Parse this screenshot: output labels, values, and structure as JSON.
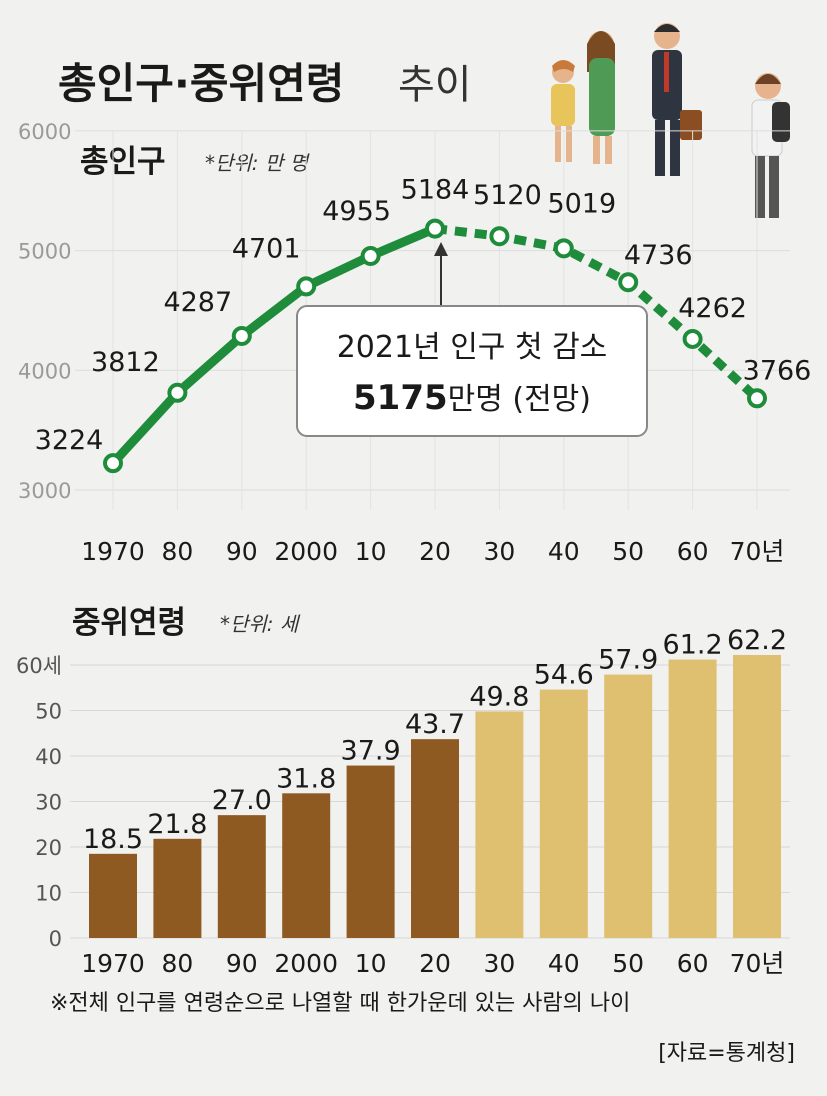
{
  "header": {
    "title_bold": "총인구·중위연령",
    "title_light": "추이"
  },
  "population_section": {
    "title": "총인구",
    "unit": "*단위: 만 명"
  },
  "median_age_section": {
    "title": "중위연령",
    "unit": "*단위: 세"
  },
  "callout": {
    "line1": "2021년 인구 첫 감소",
    "number": "5175",
    "rest": "만명 (전망)"
  },
  "footnote": "※전체 인구를 연령순으로 나열할 때 한가운데 있는 사람의 나이",
  "source": "[자료=통계청]",
  "chart_data": [
    {
      "type": "line",
      "title": "총인구",
      "categories": [
        "1970",
        "80",
        "90",
        "2000",
        "10",
        "20",
        "30",
        "40",
        "50",
        "60",
        "70년"
      ],
      "values": [
        3224,
        3812,
        4287,
        4701,
        4955,
        5184,
        5120,
        5019,
        4736,
        4262,
        3766
      ],
      "value_labels": [
        "3224",
        "3812",
        "4287",
        "4701",
        "4955",
        "5184",
        "5120",
        "5019",
        "4736",
        "4262",
        "3766"
      ],
      "projected_from_index": 5,
      "yticks": [
        "3000",
        "4000",
        "5000",
        "6000"
      ],
      "ylim": [
        3000,
        6000
      ],
      "color": "#1e8c3a",
      "grid": true
    },
    {
      "type": "bar",
      "title": "중위연령",
      "categories": [
        "1970",
        "80",
        "90",
        "2000",
        "10",
        "20",
        "30",
        "40",
        "50",
        "60",
        "70년"
      ],
      "values": [
        18.5,
        21.8,
        27.0,
        31.8,
        37.9,
        43.7,
        49.8,
        54.6,
        57.9,
        61.2,
        62.2
      ],
      "value_labels": [
        "18.5",
        "21.8",
        "27.0",
        "31.8",
        "37.9",
        "43.7",
        "49.8",
        "54.6",
        "57.9",
        "61.2",
        "62.2"
      ],
      "yticks": [
        "0",
        "10",
        "20",
        "30",
        "40",
        "50",
        "60세"
      ],
      "ylim": [
        0,
        60
      ],
      "colors": {
        "actual": "#8e5a22",
        "projected": "#dfc071"
      },
      "projected_from_index": 6,
      "grid": true
    }
  ]
}
